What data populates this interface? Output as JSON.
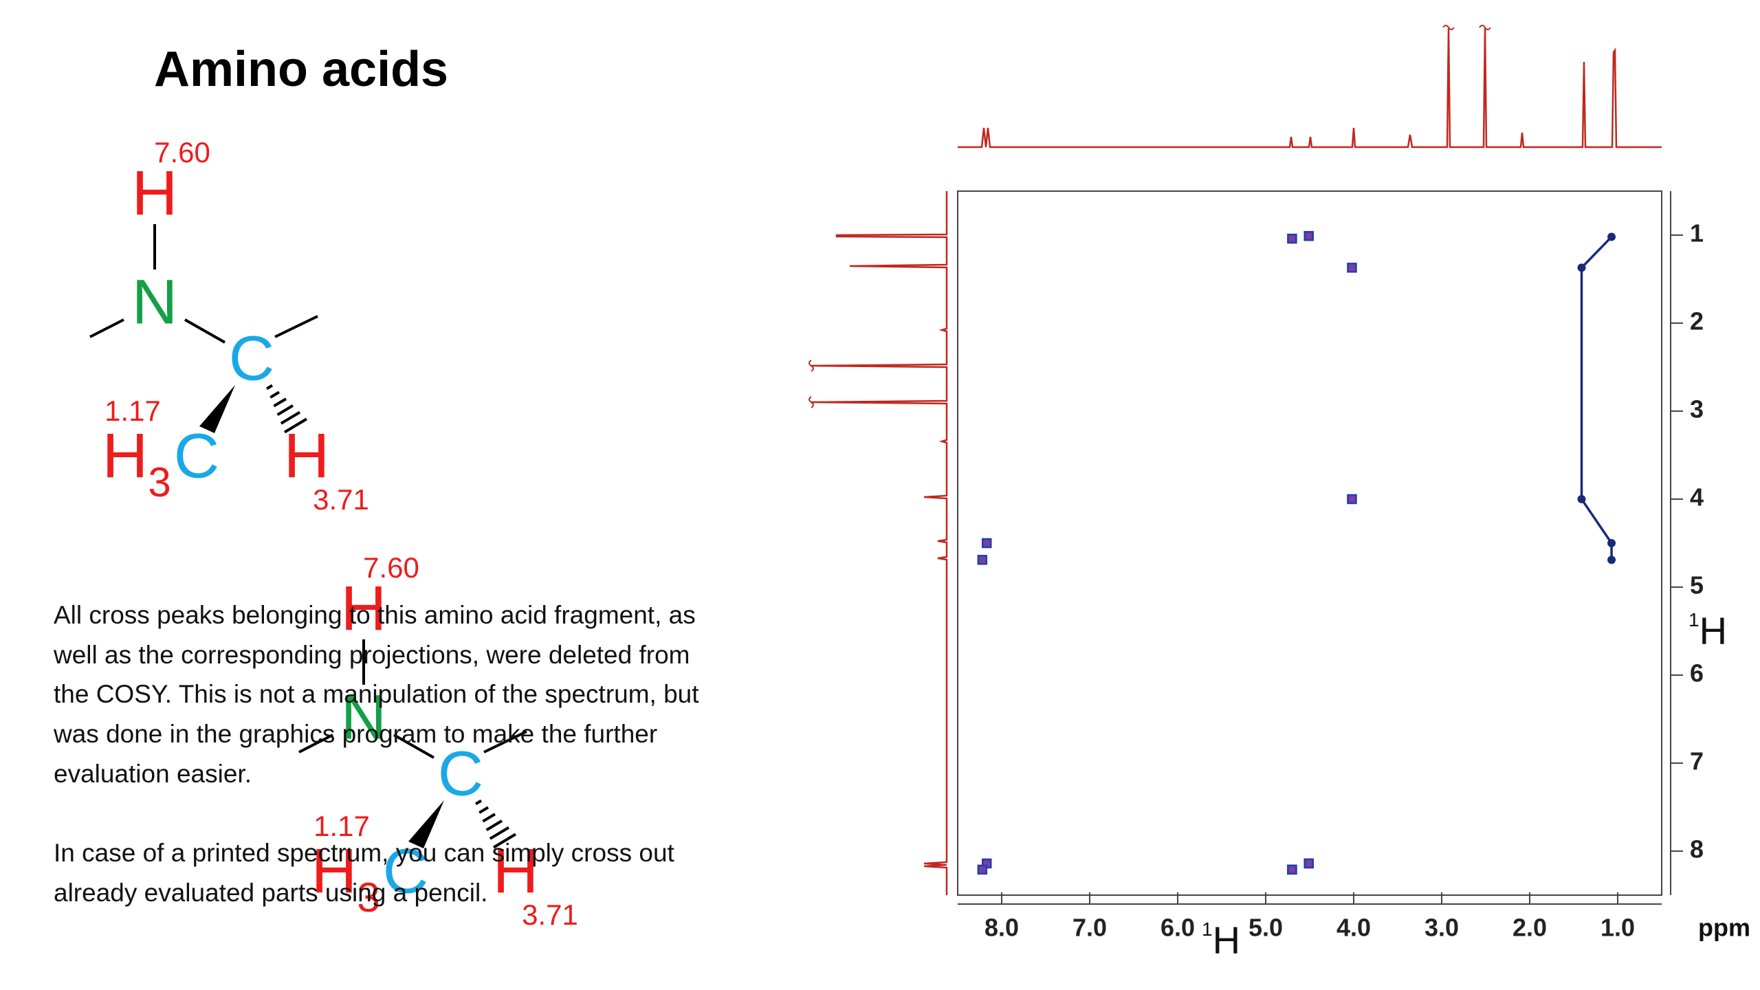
{
  "title": "Amino acids",
  "molecule": {
    "nh_shift": "7.60",
    "h_top": "H",
    "n": "N",
    "c": "C",
    "ch3_shift": "1.17",
    "h3": "H",
    "sub3": "3",
    "c3": "C",
    "h_alpha": "H",
    "ch_shift": "3.71"
  },
  "paragraphs": [
    [
      "All cross peaks belonging to this amino acid fragment, as",
      "well as the corresponding projections, were deleted from",
      "the COSY. This is not a manipulation of the spectrum, but",
      "was done in the graphics program to make the further",
      "evaluation easier."
    ],
    [
      "In case of a printed spectrum, you can simply cross out",
      "already evaluated parts using a pencil."
    ]
  ],
  "chart_data": {
    "type": "scatter",
    "x_label": "1H",
    "y_label": "1H",
    "unit": "ppm",
    "xlim": [
      8.5,
      0.5
    ],
    "ylim": [
      0.5,
      8.5
    ],
    "xticks": [
      {
        "value": 8,
        "label": "8.0"
      },
      {
        "value": 7,
        "label": "7.0"
      },
      {
        "value": 6,
        "label": "6.0"
      },
      {
        "value": 5,
        "label": "5.0"
      },
      {
        "value": 4,
        "label": "4.0"
      },
      {
        "value": 3,
        "label": "3.0"
      },
      {
        "value": 2,
        "label": "2.0"
      },
      {
        "value": 1,
        "label": "1.0"
      }
    ],
    "yticks": [
      1,
      2,
      3,
      4,
      5,
      6,
      7,
      8
    ],
    "peaks": {
      "color": "#7a3fa0",
      "x": [
        4.7,
        4.51,
        4.02,
        4.02,
        8.17,
        8.22,
        4.51,
        4.7,
        8.17,
        8.22,
        4.7,
        4.51
      ],
      "y": [
        1.04,
        1.01,
        1.37,
        4.0,
        4.5,
        4.69,
        8.14,
        8.21,
        8.14,
        8.21,
        8.21,
        8.14
      ]
    },
    "connector": {
      "color": "#1a2a7a",
      "x": [
        1.07,
        1.41,
        1.41,
        1.07,
        1.07
      ],
      "y": [
        1.02,
        1.37,
        4.0,
        4.5,
        4.69
      ]
    }
  }
}
